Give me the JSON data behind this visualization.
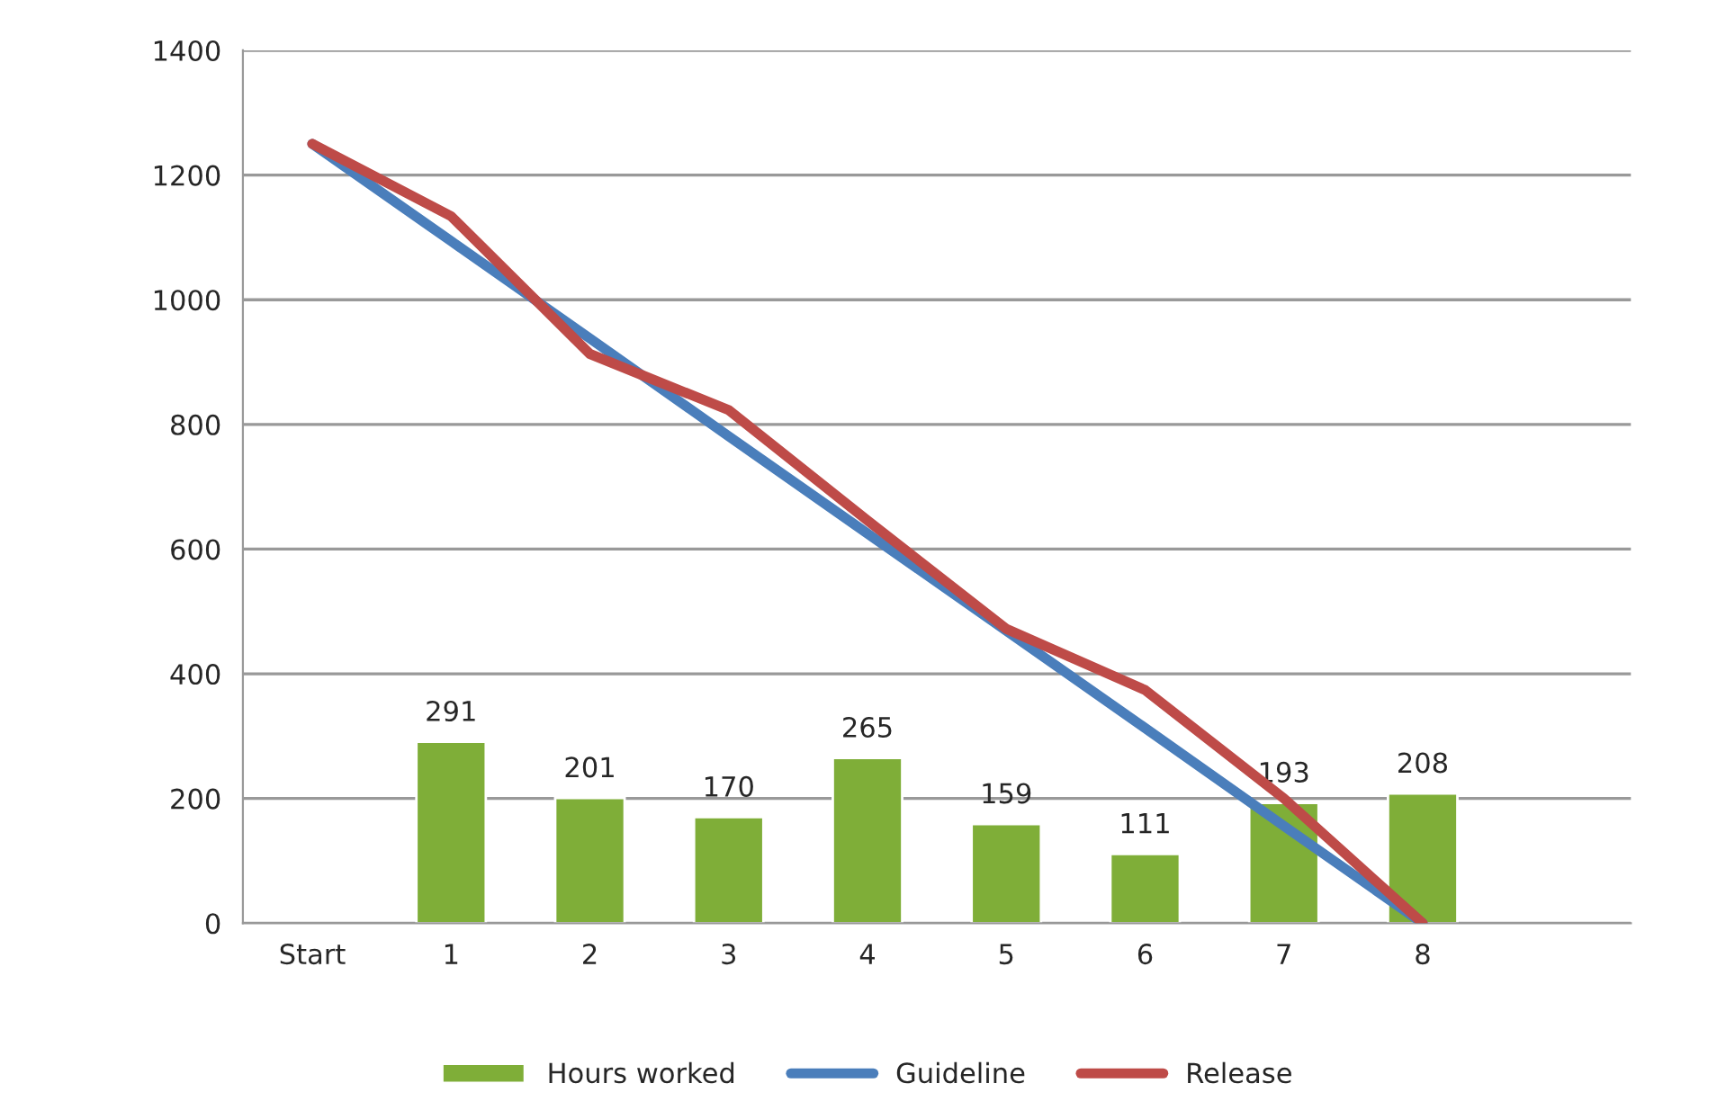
{
  "chart_data": {
    "type": "bar",
    "categories": [
      "Start",
      "1",
      "2",
      "3",
      "4",
      "5",
      "6",
      "7",
      "8",
      null
    ],
    "series": [
      {
        "name": "Hours worked",
        "color": "#7fae38",
        "values": [
          null,
          291,
          201,
          170,
          265,
          159,
          111,
          193,
          208,
          null
        ],
        "value_labels": [
          null,
          "291",
          "201",
          "170",
          "265",
          "159",
          "111",
          "193",
          "208",
          null
        ]
      },
      {
        "name": "Guideline",
        "type": "line",
        "color": "#4a7ebb",
        "values": [
          1250,
          1094,
          938,
          781,
          625,
          469,
          313,
          156,
          0,
          null
        ]
      },
      {
        "name": "Release",
        "type": "line",
        "color": "#be4b48",
        "values": [
          1250,
          1134,
          913,
          823,
          646,
          472,
          374,
          200,
          0,
          null
        ]
      }
    ],
    "ylim": [
      0,
      1400
    ],
    "yticks": [
      0,
      200,
      400,
      600,
      800,
      1000,
      1200,
      1400
    ],
    "grid": "y",
    "legend": "bottom"
  }
}
